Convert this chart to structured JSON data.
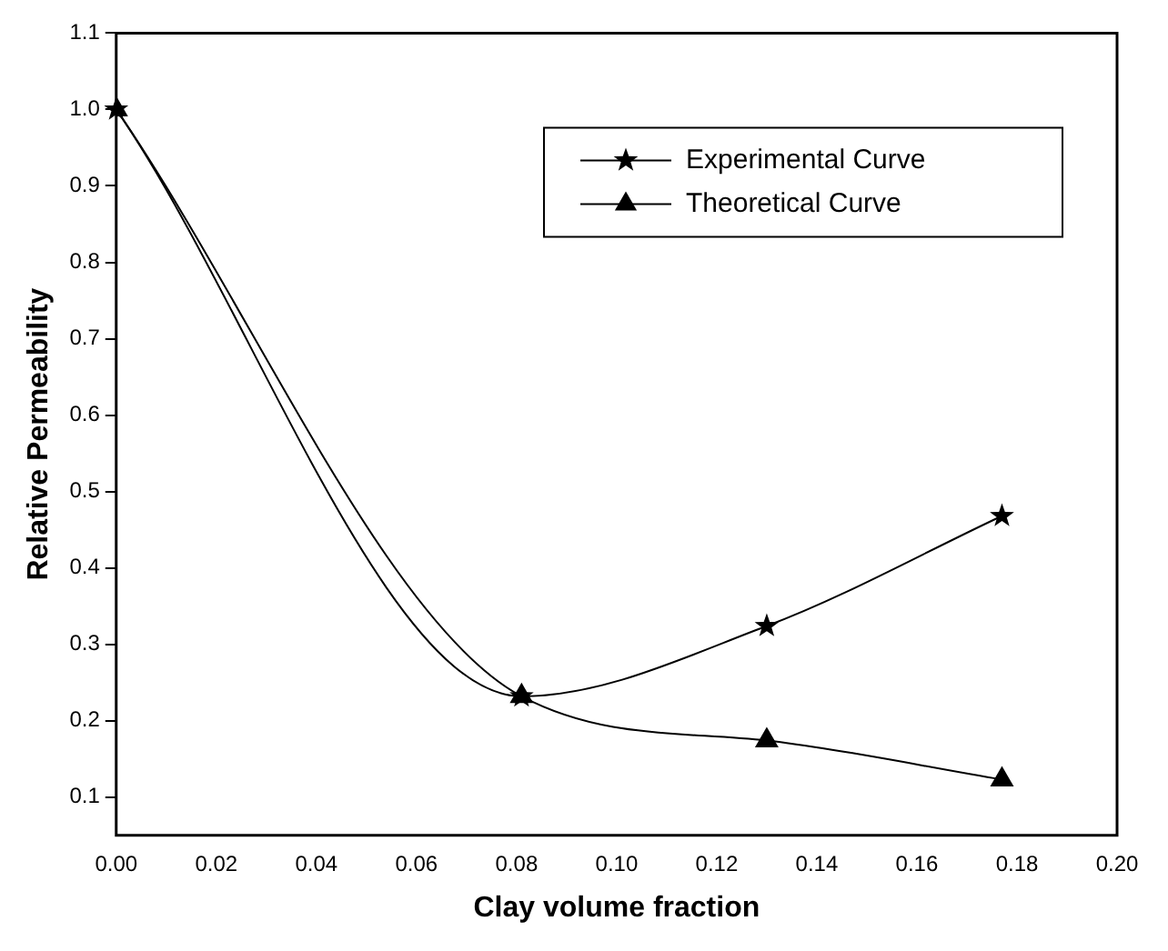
{
  "chart_data": {
    "type": "line",
    "xlabel": "Clay volume fraction",
    "ylabel": "Relative Permeability",
    "xlim": [
      0,
      0.2
    ],
    "ylim": [
      0.05,
      1.1
    ],
    "xticks": [
      {
        "value": 0,
        "label": "0.00"
      },
      {
        "value": 0.02,
        "label": "0.02"
      },
      {
        "value": 0.04,
        "label": "0.04"
      },
      {
        "value": 0.06,
        "label": "0.06"
      },
      {
        "value": 0.08,
        "label": "0.08"
      },
      {
        "value": 0.1,
        "label": "0.10"
      },
      {
        "value": 0.12,
        "label": "0.12"
      },
      {
        "value": 0.14,
        "label": "0.14"
      },
      {
        "value": 0.16,
        "label": "0.16"
      },
      {
        "value": 0.18,
        "label": "0.18"
      },
      {
        "value": 0.2,
        "label": "0.20"
      }
    ],
    "yticks": [
      0.1,
      0.2,
      0.3,
      0.4,
      0.5,
      0.6,
      0.7,
      0.8,
      0.9,
      {
        "value": 1.0,
        "label": "1.0"
      },
      1.1
    ],
    "grid": false,
    "legend": "top right",
    "series": [
      {
        "name": "Experimental Curve",
        "color": "#000000",
        "marker": "star",
        "x": [
          0,
          0.081,
          0.13,
          0.177
        ],
        "values": [
          1.0,
          0.232,
          0.324,
          0.468
        ]
      },
      {
        "name": "Theoretical Curve",
        "color": "#000000",
        "marker": "triangle",
        "x": [
          0,
          0.081,
          0.13,
          0.177
        ],
        "values": [
          1.0,
          0.232,
          0.174,
          0.123
        ]
      }
    ]
  }
}
